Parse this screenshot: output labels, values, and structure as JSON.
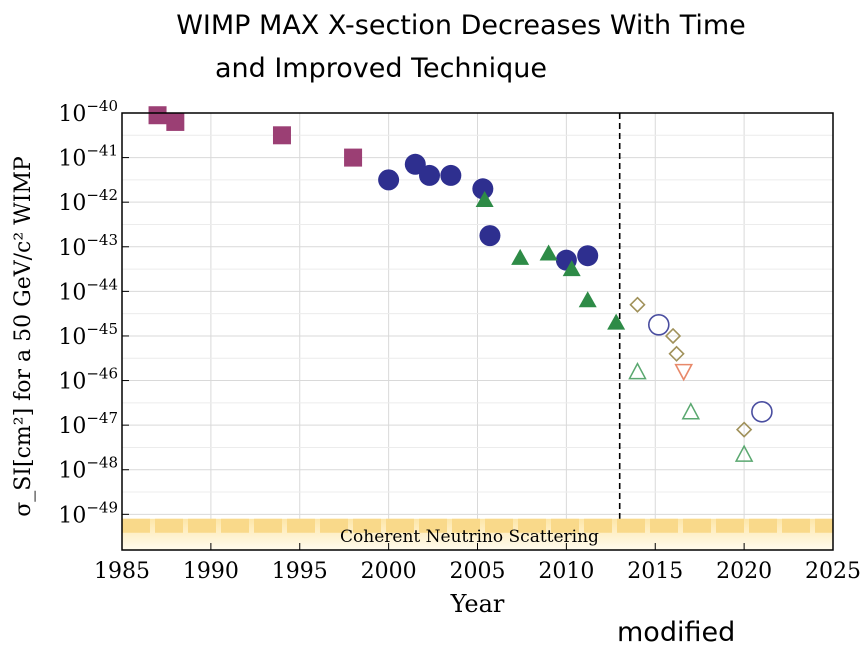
{
  "title_line1": "WIMP MAX X-section Decreases With Time",
  "title_line2": "and Improved Technique",
  "footnote": "modified",
  "chart_data": {
    "type": "scatter",
    "xlabel": "Year",
    "ylabel": "σ_SI[cm²] for a 50 GeV/c² WIMP",
    "xlim": [
      1985,
      2025
    ],
    "ylim_log10": [
      -49.8,
      -40
    ],
    "y_scale": "log",
    "grid": true,
    "x_ticks": [
      1985,
      1990,
      1995,
      2000,
      2005,
      2010,
      2015,
      2020,
      2025
    ],
    "y_tick_exponents": [
      -40,
      -41,
      -42,
      -43,
      -44,
      -45,
      -46,
      -47,
      -48,
      -49
    ],
    "vertical_line_year": 2013,
    "neutrino_band_label": "Coherent Neutrino Scattering",
    "series": [
      {
        "marker": "filled-square",
        "color": "#9b3f74",
        "x": [
          1987,
          1988,
          1994,
          1998
        ],
        "y_log10": [
          -40.05,
          -40.2,
          -40.5,
          -41.0
        ]
      },
      {
        "marker": "filled-circle",
        "color": "#2e2f8f",
        "x": [
          2000,
          2001.5,
          2002.3,
          2003.5,
          2005.3,
          2005.7,
          2010,
          2011.2
        ],
        "y_log10": [
          -41.5,
          -41.15,
          -41.4,
          -41.4,
          -41.7,
          -42.75,
          -43.3,
          -43.2
        ]
      },
      {
        "marker": "filled-triangle",
        "color": "#2e8b47",
        "x": [
          2005.4,
          2007.4,
          2009,
          2010.3,
          2011.2,
          2012.8
        ],
        "y_log10": [
          -41.95,
          -43.25,
          -43.15,
          -43.5,
          -44.2,
          -44.7
        ]
      },
      {
        "marker": "open-diamond",
        "color": "#a0915a",
        "x": [
          2014,
          2016,
          2016.2,
          2020
        ],
        "y_log10": [
          -44.3,
          -45.0,
          -45.4,
          -47.1
        ]
      },
      {
        "marker": "open-circle",
        "color": "#4a4ea0",
        "x": [
          2015.2,
          2021
        ],
        "y_log10": [
          -44.75,
          -46.7
        ]
      },
      {
        "marker": "open-triangle-down",
        "color": "#e8896a",
        "x": [
          2016.6
        ],
        "y_log10": [
          -45.8
        ]
      },
      {
        "marker": "open-triangle",
        "color": "#5aa870",
        "x": [
          2014,
          2017,
          2020
        ],
        "y_log10": [
          -45.8,
          -46.7,
          -47.65
        ]
      }
    ]
  }
}
